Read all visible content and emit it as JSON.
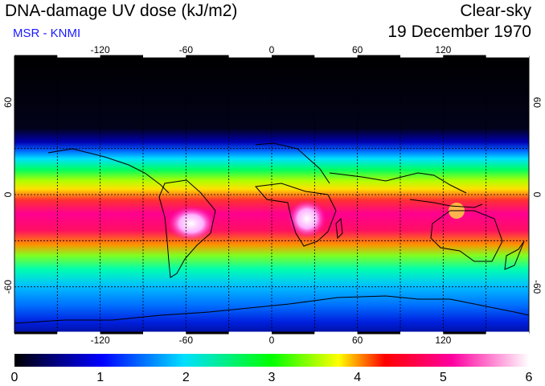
{
  "header": {
    "title": "DNA-damage UV dose (kJ/m2)",
    "source": "MSR - KNMI",
    "condition": "Clear-sky",
    "date": "19 December 1970"
  },
  "map": {
    "lon_ticks": [
      -120,
      -60,
      0,
      60,
      120
    ],
    "lat_ticks": [
      60,
      0,
      -60
    ],
    "lon_range": [
      -180,
      180
    ],
    "lat_range": [
      -90,
      90
    ],
    "gridlines": true,
    "grid_lat": [
      60,
      30,
      0,
      -30,
      -60
    ],
    "grid_lon": [
      -150,
      -120,
      -90,
      -60,
      -30,
      0,
      30,
      60,
      90,
      120,
      150
    ]
  },
  "colorbar": {
    "ticks": [
      "0",
      "1",
      "2",
      "3",
      "4",
      "5",
      "6"
    ],
    "colors": [
      "#000000",
      "#0000ff",
      "#00d0ff",
      "#00ff00",
      "#ffff00",
      "#ff0000",
      "#ff00ff",
      "#ffffff"
    ]
  },
  "colors": {
    "title_text": "#000000",
    "source_text": "#1a1aff",
    "grid": "#000000"
  }
}
